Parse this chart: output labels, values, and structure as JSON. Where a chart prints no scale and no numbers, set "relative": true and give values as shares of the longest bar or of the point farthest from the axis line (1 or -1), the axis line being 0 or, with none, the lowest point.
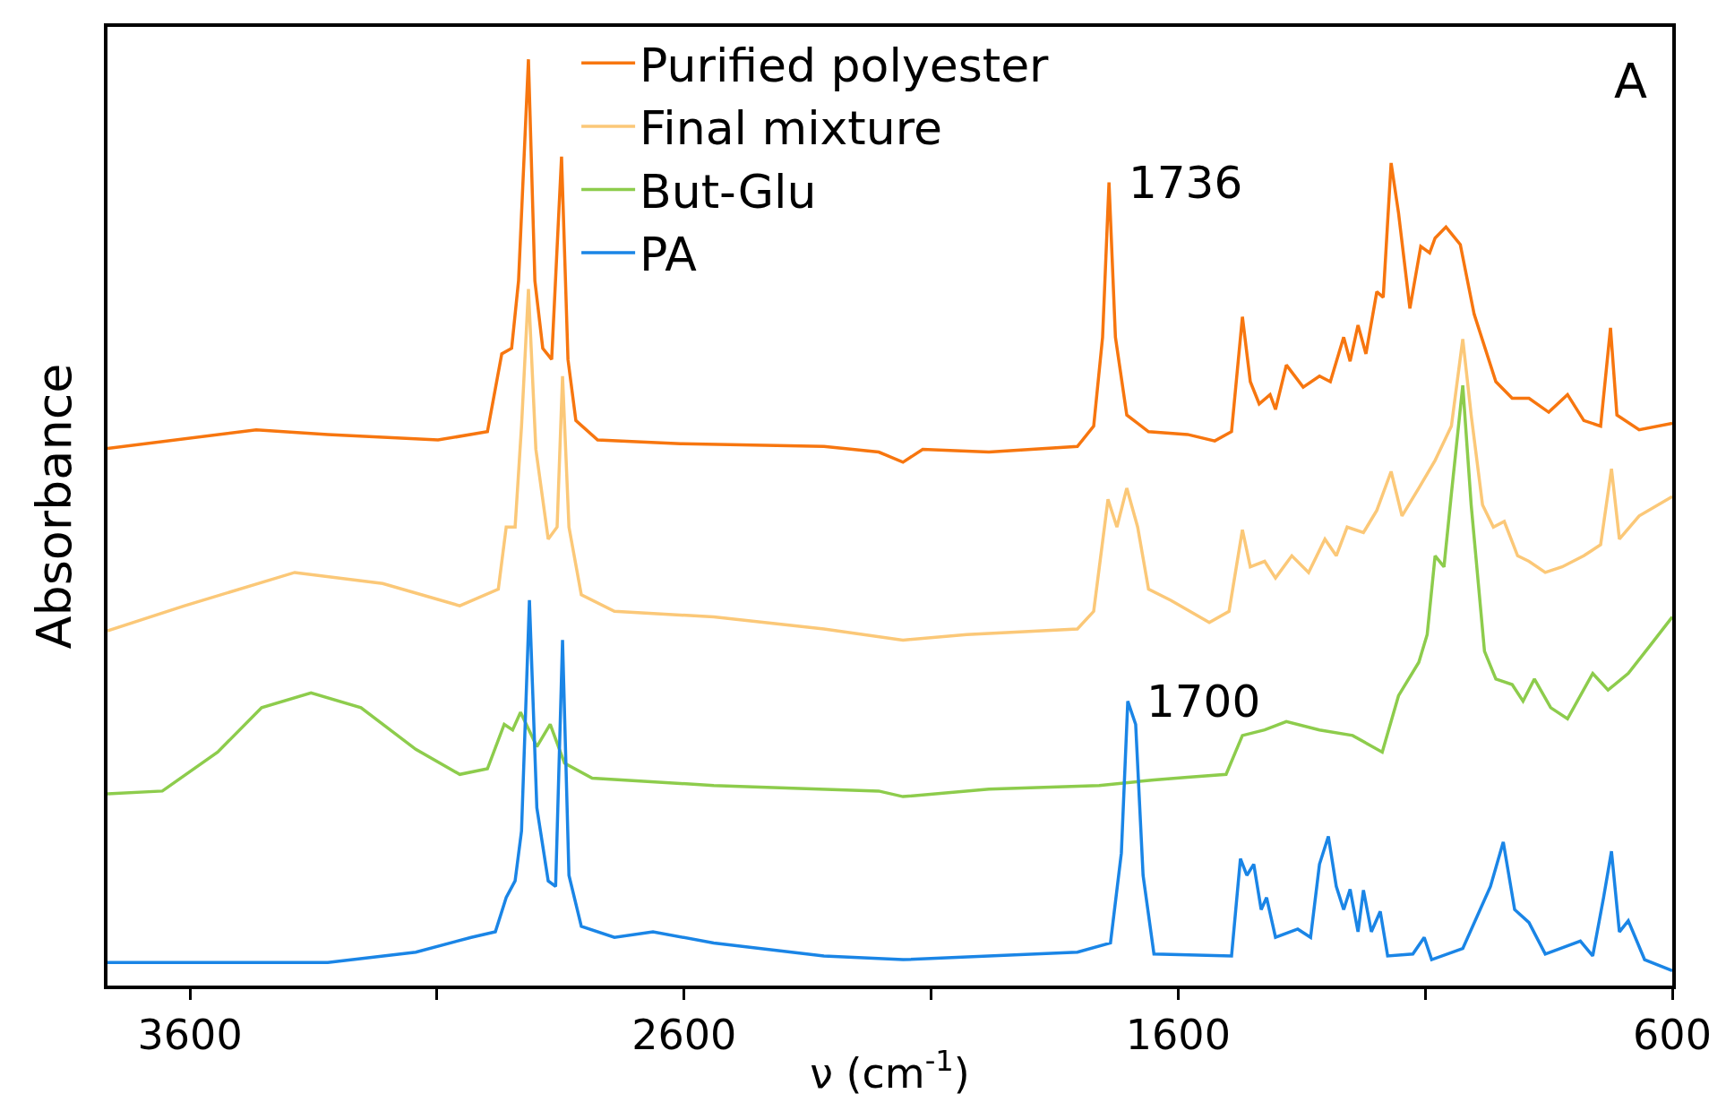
{
  "chart_data": {
    "type": "line",
    "relative": true,
    "xlabel": "ν (cm$^{-1}$)",
    "ylabel": "Absorbance",
    "xlim": [
      3767,
      600
    ],
    "xticks": [
      3600,
      {
        "value": 3100,
        "label": null
      },
      2600,
      {
        "value": 2100,
        "label": null
      },
      1600,
      {
        "value": 1100,
        "label": null
      },
      600
    ],
    "legend": "top",
    "line_style": "solid",
    "marker": "none",
    "tick_labels": "x",
    "annotations": [
      {
        "text": "1736",
        "x": 1736,
        "y": 0.867
      },
      {
        "text": "1700",
        "x": 1700,
        "y": 0.307
      },
      "A"
    ],
    "series": [
      {
        "name": "Purified polyester",
        "color": "#f7760f",
        "x": [
          3767,
          3466,
          3321,
          3098,
          2998,
          2969,
          2949,
          2935,
          2915,
          2902,
          2886,
          2868,
          2848,
          2835,
          2819,
          2775,
          2607,
          2317,
          2206,
          2157,
          2117,
          1983,
          1804,
          1771,
          1753,
          1740,
          1727,
          1704,
          1660,
          1581,
          1526,
          1492,
          1470,
          1454,
          1436,
          1414,
          1403,
          1381,
          1347,
          1314,
          1292,
          1265,
          1252,
          1236,
          1220,
          1198,
          1185,
          1169,
          1154,
          1131,
          1109,
          1091,
          1080,
          1058,
          1029,
          1001,
          957,
          924,
          890,
          850,
          812,
          779,
          745,
          725,
          712,
          667,
          600
        ],
        "values": [
          0.58,
          0.6,
          0.595,
          0.589,
          0.598,
          0.682,
          0.688,
          0.761,
          1.0,
          0.761,
          0.688,
          0.676,
          0.895,
          0.676,
          0.61,
          0.589,
          0.585,
          0.582,
          0.576,
          0.565,
          0.579,
          0.576,
          0.582,
          0.604,
          0.7,
          0.867,
          0.7,
          0.616,
          0.598,
          0.595,
          0.588,
          0.598,
          0.722,
          0.652,
          0.628,
          0.638,
          0.622,
          0.67,
          0.646,
          0.658,
          0.652,
          0.7,
          0.674,
          0.713,
          0.682,
          0.749,
          0.743,
          0.888,
          0.834,
          0.731,
          0.798,
          0.791,
          0.807,
          0.819,
          0.8,
          0.725,
          0.652,
          0.634,
          0.634,
          0.619,
          0.638,
          0.61,
          0.604,
          0.71,
          0.616,
          0.6,
          0.607
        ]
      },
      {
        "name": "Final mixture",
        "color": "#fbc878",
        "x": [
          3767,
          3611,
          3388,
          3210,
          3054,
          2976,
          2960,
          2942,
          2929,
          2915,
          2900,
          2875,
          2857,
          2846,
          2833,
          2808,
          2741,
          2540,
          2317,
          2157,
          2028,
          1804,
          1771,
          1742,
          1724,
          1704,
          1682,
          1660,
          1615,
          1537,
          1497,
          1470,
          1454,
          1425,
          1403,
          1370,
          1336,
          1303,
          1280,
          1258,
          1225,
          1198,
          1169,
          1147,
          1113,
          1080,
          1047,
          1024,
          1007,
          984,
          962,
          940,
          913,
          890,
          857,
          823,
          779,
          745,
          723,
          707,
          667,
          600
        ],
        "values": [
          0.383,
          0.41,
          0.446,
          0.434,
          0.41,
          0.428,
          0.495,
          0.495,
          0.604,
          0.752,
          0.579,
          0.482,
          0.495,
          0.658,
          0.495,
          0.422,
          0.404,
          0.398,
          0.385,
          0.373,
          0.379,
          0.385,
          0.404,
          0.525,
          0.495,
          0.537,
          0.495,
          0.428,
          0.416,
          0.392,
          0.404,
          0.492,
          0.452,
          0.458,
          0.44,
          0.464,
          0.446,
          0.482,
          0.464,
          0.495,
          0.489,
          0.513,
          0.555,
          0.507,
          0.537,
          0.567,
          0.604,
          0.698,
          0.616,
          0.519,
          0.495,
          0.501,
          0.464,
          0.458,
          0.446,
          0.452,
          0.464,
          0.476,
          0.558,
          0.482,
          0.507,
          0.528
        ]
      },
      {
        "name": "But-Glu",
        "color": "#8dcc4c",
        "x": [
          3767,
          3656,
          3544,
          3455,
          3355,
          3254,
          3143,
          3054,
          2998,
          2964,
          2947,
          2931,
          2898,
          2871,
          2842,
          2786,
          2540,
          2206,
          2157,
          1983,
          1760,
          1649,
          1581,
          1503,
          1470,
          1425,
          1381,
          1314,
          1247,
          1187,
          1154,
          1113,
          1096,
          1080,
          1062,
          1047,
          1024,
          1007,
          980,
          957,
          924,
          902,
          879,
          846,
          812,
          761,
          730,
          689,
          645,
          600
        ],
        "values": [
          0.207,
          0.21,
          0.252,
          0.3,
          0.316,
          0.3,
          0.255,
          0.228,
          0.234,
          0.282,
          0.276,
          0.295,
          0.258,
          0.282,
          0.24,
          0.224,
          0.216,
          0.21,
          0.204,
          0.212,
          0.216,
          0.222,
          0.225,
          0.228,
          0.27,
          0.276,
          0.285,
          0.276,
          0.27,
          0.252,
          0.313,
          0.349,
          0.379,
          0.464,
          0.452,
          0.531,
          0.648,
          0.519,
          0.361,
          0.331,
          0.325,
          0.307,
          0.331,
          0.3,
          0.288,
          0.337,
          0.319,
          0.337,
          0.367,
          0.398
        ]
      },
      {
        "name": "PA",
        "color": "#1a85e6",
        "x": [
          3767,
          3321,
          3143,
          3031,
          2982,
          2960,
          2942,
          2929,
          2913,
          2898,
          2875,
          2860,
          2846,
          2833,
          2808,
          2741,
          2663,
          2540,
          2317,
          2157,
          1804,
          1737,
          1715,
          1702,
          1686,
          1671,
          1649,
          1492,
          1474,
          1461,
          1447,
          1432,
          1421,
          1403,
          1358,
          1332,
          1314,
          1296,
          1280,
          1265,
          1252,
          1236,
          1225,
          1209,
          1191,
          1176,
          1125,
          1102,
          1087,
          1024,
          968,
          942,
          919,
          890,
          857,
          786,
          761,
          739,
          723,
          707,
          689,
          656,
          600
        ],
        "values": [
          0.025,
          0.025,
          0.036,
          0.052,
          0.058,
          0.095,
          0.113,
          0.167,
          0.416,
          0.192,
          0.113,
          0.107,
          0.373,
          0.119,
          0.064,
          0.052,
          0.058,
          0.046,
          0.032,
          0.028,
          0.036,
          0.046,
          0.143,
          0.307,
          0.282,
          0.119,
          0.034,
          0.032,
          0.137,
          0.119,
          0.131,
          0.082,
          0.095,
          0.052,
          0.061,
          0.052,
          0.131,
          0.161,
          0.107,
          0.082,
          0.104,
          0.058,
          0.103,
          0.058,
          0.08,
          0.032,
          0.034,
          0.052,
          0.028,
          0.04,
          0.107,
          0.155,
          0.082,
          0.068,
          0.034,
          0.048,
          0.032,
          0.095,
          0.145,
          0.058,
          0.07,
          0.028,
          0.016
        ]
      }
    ]
  }
}
